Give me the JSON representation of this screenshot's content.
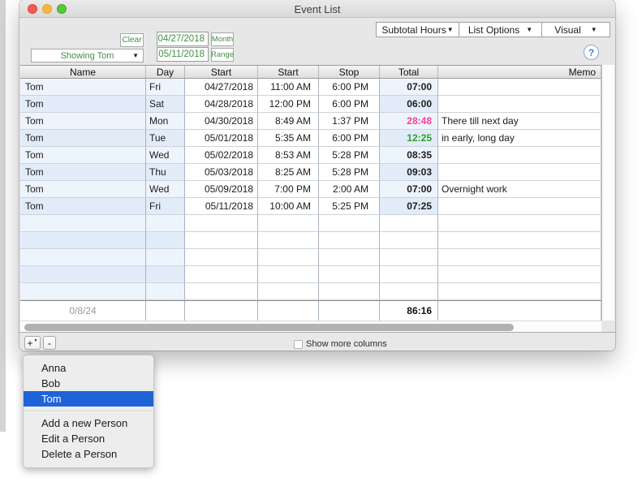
{
  "window": {
    "title": "Event List"
  },
  "toolbar": {
    "subtotal_label": "Subtotal Hours",
    "list_options_label": "List Options",
    "visual_label": "Visual",
    "clear_label": "Clear",
    "person_filter_value": "Showing Tom",
    "date_from": "04/27/2018",
    "date_to": "05/11/2018",
    "month_label": "Month",
    "range_label": "Range",
    "help_label": "?"
  },
  "table": {
    "headers": [
      "Name",
      "Day",
      "Start",
      "Start",
      "Stop",
      "Total",
      "Memo"
    ],
    "rows": [
      {
        "name": "Tom",
        "day": "Fri",
        "date": "04/27/2018",
        "start": "11:00 AM",
        "stop": "6:00 PM",
        "total": "07:00",
        "total_color": "#1b1b1b",
        "memo": ""
      },
      {
        "name": "Tom",
        "day": "Sat",
        "date": "04/28/2018",
        "start": "12:00 PM",
        "stop": "6:00 PM",
        "total": "06:00",
        "total_color": "#1b1b1b",
        "memo": ""
      },
      {
        "name": "Tom",
        "day": "Mon",
        "date": "04/30/2018",
        "start": "8:49 AM",
        "stop": "1:37 PM",
        "total": "28:48",
        "total_color": "#fb3e96",
        "memo": "There till next day"
      },
      {
        "name": "Tom",
        "day": "Tue",
        "date": "05/01/2018",
        "start": "5:35 AM",
        "stop": "6:00 PM",
        "total": "12:25",
        "total_color": "#2aa32a",
        "memo": "in early, long day"
      },
      {
        "name": "Tom",
        "day": "Wed",
        "date": "05/02/2018",
        "start": "8:53 AM",
        "stop": "5:28 PM",
        "total": "08:35",
        "total_color": "#1b1b1b",
        "memo": ""
      },
      {
        "name": "Tom",
        "day": "Thu",
        "date": "05/03/2018",
        "start": "8:25 AM",
        "stop": "5:28 PM",
        "total": "09:03",
        "total_color": "#1b1b1b",
        "memo": ""
      },
      {
        "name": "Tom",
        "day": "Wed",
        "date": "05/09/2018",
        "start": "7:00 PM",
        "stop": "2:00 AM",
        "total": "07:00",
        "total_color": "#1b1b1b",
        "memo": "Overnight work"
      },
      {
        "name": "Tom",
        "day": "Fri",
        "date": "05/11/2018",
        "start": "10:00 AM",
        "stop": "5:25 PM",
        "total": "07:25",
        "total_color": "#1b1b1b",
        "memo": ""
      }
    ],
    "empty_row_count": 5,
    "summary": {
      "count": "0/8/24",
      "total": "86:16"
    }
  },
  "bottom_bar": {
    "add_label": "+",
    "remove_label": "-",
    "show_more_label": "Show more columns"
  },
  "popup_menu": {
    "people": [
      "Anna",
      "Bob",
      "Tom"
    ],
    "selected_person": "Tom",
    "actions": [
      "Add a new Person",
      "Edit a Person",
      "Delete a Person"
    ]
  },
  "colors": {
    "accent_green": "#3f9142",
    "selection_blue": "#1f63d8",
    "overtime_pink": "#fb3e96",
    "long_day_green": "#2aa32a",
    "row_tint_odd": "#eef4fc",
    "row_tint_even": "#e2ecf9"
  }
}
